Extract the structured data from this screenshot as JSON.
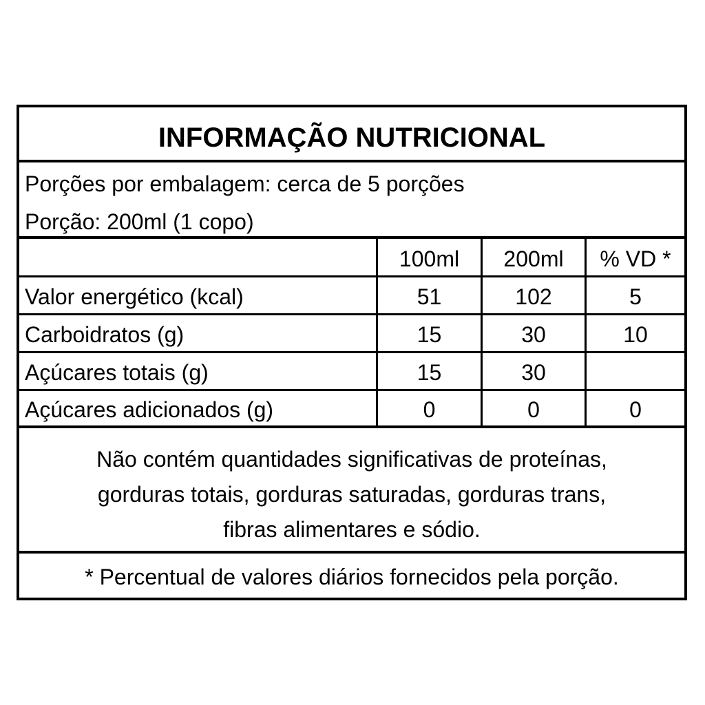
{
  "title": "INFORMAÇÃO NUTRICIONAL",
  "servings_per_package": "Porções por embalagem: cerca de 5 porções",
  "serving_size": "Porção: 200ml  (1 copo)",
  "table": {
    "headers": [
      "",
      "100ml",
      "200ml",
      "% VD *"
    ],
    "rows": [
      [
        "Valor energético (kcal)",
        "51",
        "102",
        "5"
      ],
      [
        "Carboidratos (g)",
        "15",
        "30",
        "10"
      ],
      [
        "Açúcares totais (g)",
        "15",
        "30",
        ""
      ],
      [
        "Açúcares adicionados (g)",
        "0",
        "0",
        "0"
      ]
    ]
  },
  "notes": [
    "Não contém quantidades significativas de proteínas,",
    "gorduras totais, gorduras saturadas, gorduras trans,",
    "fibras alimentares e sódio."
  ],
  "footnote": "* Percentual de valores diários fornecidos pela porção."
}
